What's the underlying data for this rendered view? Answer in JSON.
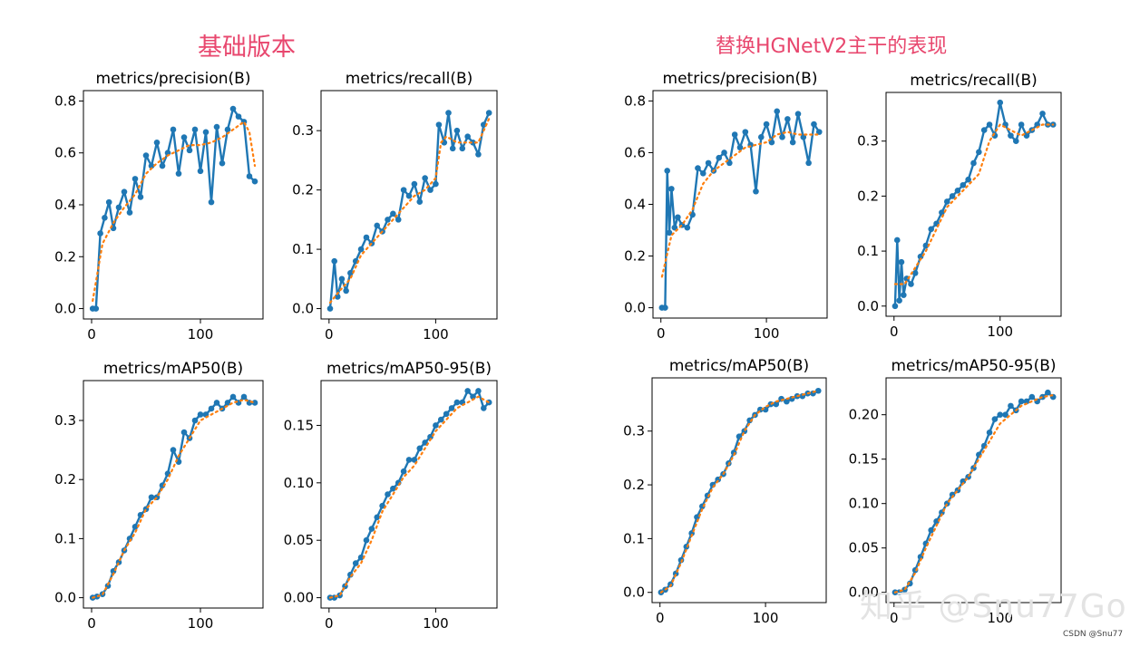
{
  "headings": {
    "left": "基础版本",
    "right": "替换HGNetV2主干的表现"
  },
  "watermark": "知乎 @Snu77Go",
  "credit": "CSDN @Snu77",
  "colors": {
    "heading": "#e8476e",
    "series_results": "#1f77b4",
    "series_smooth": "#ff7f0e"
  },
  "chart_data": [
    {
      "type": "line",
      "group": "基础版本",
      "title": "metrics/precision(B)",
      "xlim": [
        0,
        150
      ],
      "ylim": [
        0,
        0.8
      ],
      "xticks": [
        0,
        100
      ],
      "xtick_labels": [
        "0",
        "100"
      ],
      "yticks": [
        0,
        0.2,
        0.4,
        0.6,
        0.8
      ],
      "ytick_labels": [
        "0.0",
        "0.2",
        "0.4",
        "0.6",
        "0.8"
      ],
      "series": [
        {
          "style": "line-markers",
          "x": [
            1,
            4,
            8,
            12,
            16,
            20,
            25,
            30,
            35,
            40,
            45,
            50,
            55,
            60,
            65,
            70,
            75,
            80,
            85,
            90,
            95,
            100,
            105,
            110,
            115,
            120,
            125,
            130,
            135,
            140,
            145,
            150
          ],
          "y": [
            0.0,
            0.0,
            0.29,
            0.35,
            0.41,
            0.31,
            0.39,
            0.45,
            0.37,
            0.5,
            0.43,
            0.59,
            0.55,
            0.64,
            0.55,
            0.6,
            0.69,
            0.52,
            0.66,
            0.61,
            0.69,
            0.53,
            0.68,
            0.41,
            0.7,
            0.56,
            0.69,
            0.77,
            0.74,
            0.72,
            0.51,
            0.49
          ]
        },
        {
          "style": "dotted",
          "x": [
            1,
            10,
            20,
            30,
            40,
            50,
            60,
            70,
            80,
            90,
            100,
            110,
            120,
            130,
            140,
            145,
            150
          ],
          "y": [
            0.03,
            0.25,
            0.33,
            0.39,
            0.44,
            0.52,
            0.56,
            0.59,
            0.61,
            0.63,
            0.63,
            0.64,
            0.66,
            0.69,
            0.72,
            0.68,
            0.55
          ]
        }
      ]
    },
    {
      "type": "line",
      "group": "基础版本",
      "title": "metrics/recall(B)",
      "xlim": [
        0,
        150
      ],
      "ylim": [
        0,
        0.35
      ],
      "xticks": [
        0,
        100
      ],
      "xtick_labels": [
        "0",
        "100"
      ],
      "yticks": [
        0,
        0.1,
        0.2,
        0.3
      ],
      "ytick_labels": [
        "0.0",
        "0.1",
        "0.2",
        "0.3"
      ],
      "series": [
        {
          "style": "line-markers",
          "x": [
            1,
            5,
            8,
            12,
            16,
            20,
            25,
            30,
            35,
            40,
            45,
            50,
            55,
            60,
            65,
            70,
            75,
            80,
            85,
            90,
            95,
            100,
            103,
            108,
            112,
            116,
            120,
            125,
            130,
            135,
            140,
            145,
            150
          ],
          "y": [
            0.0,
            0.08,
            0.02,
            0.05,
            0.03,
            0.06,
            0.08,
            0.1,
            0.12,
            0.11,
            0.14,
            0.13,
            0.15,
            0.16,
            0.15,
            0.2,
            0.19,
            0.21,
            0.18,
            0.22,
            0.2,
            0.21,
            0.31,
            0.28,
            0.33,
            0.27,
            0.3,
            0.27,
            0.29,
            0.28,
            0.26,
            0.31,
            0.33
          ]
        },
        {
          "style": "dotted",
          "x": [
            1,
            10,
            20,
            30,
            40,
            50,
            60,
            70,
            80,
            90,
            100,
            105,
            110,
            120,
            130,
            140,
            150
          ],
          "y": [
            0.01,
            0.03,
            0.05,
            0.09,
            0.11,
            0.13,
            0.15,
            0.17,
            0.19,
            0.2,
            0.22,
            0.28,
            0.29,
            0.28,
            0.28,
            0.28,
            0.32
          ]
        }
      ]
    },
    {
      "type": "line",
      "group": "基础版本",
      "title": "metrics/mAP50(B)",
      "xlim": [
        0,
        150
      ],
      "ylim": [
        0,
        0.35
      ],
      "xticks": [
        0,
        100
      ],
      "xtick_labels": [
        "0",
        "100"
      ],
      "yticks": [
        0,
        0.1,
        0.2,
        0.3
      ],
      "ytick_labels": [
        "0.0",
        "0.1",
        "0.2",
        "0.3"
      ],
      "series": [
        {
          "style": "line-markers",
          "x": [
            1,
            5,
            10,
            15,
            20,
            25,
            30,
            35,
            40,
            45,
            50,
            55,
            60,
            65,
            70,
            75,
            80,
            85,
            90,
            95,
            100,
            105,
            110,
            115,
            120,
            125,
            130,
            135,
            140,
            145,
            150
          ],
          "y": [
            0.0,
            0.002,
            0.006,
            0.02,
            0.045,
            0.06,
            0.08,
            0.1,
            0.12,
            0.14,
            0.15,
            0.17,
            0.17,
            0.19,
            0.21,
            0.25,
            0.23,
            0.28,
            0.27,
            0.3,
            0.31,
            0.31,
            0.32,
            0.33,
            0.32,
            0.33,
            0.34,
            0.33,
            0.34,
            0.33,
            0.33
          ]
        },
        {
          "style": "dotted",
          "x": [
            1,
            10,
            20,
            30,
            40,
            50,
            60,
            70,
            80,
            90,
            100,
            110,
            120,
            130,
            140,
            150
          ],
          "y": [
            0.0,
            0.005,
            0.04,
            0.08,
            0.11,
            0.15,
            0.17,
            0.2,
            0.24,
            0.27,
            0.3,
            0.31,
            0.32,
            0.33,
            0.335,
            0.33
          ]
        }
      ]
    },
    {
      "type": "line",
      "group": "基础版本",
      "title": "metrics/mAP50-95(B)",
      "xlim": [
        0,
        150
      ],
      "ylim": [
        0,
        0.18
      ],
      "xticks": [
        0,
        100
      ],
      "xtick_labels": [
        "0",
        "100"
      ],
      "yticks": [
        0,
        0.05,
        0.1,
        0.15
      ],
      "ytick_labels": [
        "0.00",
        "0.05",
        "0.10",
        "0.15"
      ],
      "series": [
        {
          "style": "line-markers",
          "x": [
            1,
            5,
            10,
            15,
            20,
            25,
            30,
            35,
            40,
            45,
            50,
            55,
            60,
            65,
            70,
            75,
            80,
            85,
            90,
            95,
            100,
            105,
            110,
            115,
            120,
            125,
            130,
            135,
            140,
            145,
            150
          ],
          "y": [
            0.0,
            0.0,
            0.002,
            0.01,
            0.02,
            0.03,
            0.035,
            0.05,
            0.06,
            0.07,
            0.08,
            0.09,
            0.095,
            0.1,
            0.11,
            0.12,
            0.12,
            0.13,
            0.135,
            0.14,
            0.15,
            0.155,
            0.16,
            0.165,
            0.17,
            0.17,
            0.18,
            0.175,
            0.18,
            0.165,
            0.17
          ]
        },
        {
          "style": "dotted",
          "x": [
            1,
            10,
            20,
            30,
            40,
            50,
            60,
            70,
            80,
            90,
            100,
            110,
            120,
            130,
            140,
            150
          ],
          "y": [
            0.0,
            0.002,
            0.018,
            0.03,
            0.05,
            0.075,
            0.09,
            0.105,
            0.115,
            0.13,
            0.145,
            0.155,
            0.165,
            0.17,
            0.175,
            0.17
          ]
        }
      ]
    },
    {
      "type": "line",
      "group": "替换HGNetV2主干的表现",
      "title": "metrics/precision(B)",
      "xlim": [
        0,
        150
      ],
      "ylim": [
        0,
        0.8
      ],
      "xticks": [
        0,
        100
      ],
      "xtick_labels": [
        "0",
        "100"
      ],
      "yticks": [
        0,
        0.2,
        0.4,
        0.6,
        0.8
      ],
      "ytick_labels": [
        "0.0",
        "0.2",
        "0.4",
        "0.6",
        "0.8"
      ],
      "series": [
        {
          "style": "line-markers",
          "x": [
            1,
            4,
            6,
            8,
            10,
            13,
            16,
            20,
            25,
            30,
            35,
            40,
            45,
            50,
            55,
            60,
            65,
            70,
            75,
            80,
            85,
            90,
            95,
            100,
            105,
            110,
            115,
            120,
            125,
            130,
            135,
            140,
            145,
            150
          ],
          "y": [
            0.0,
            0.0,
            0.53,
            0.29,
            0.46,
            0.31,
            0.35,
            0.32,
            0.31,
            0.36,
            0.54,
            0.52,
            0.56,
            0.53,
            0.58,
            0.6,
            0.56,
            0.67,
            0.62,
            0.68,
            0.63,
            0.45,
            0.66,
            0.71,
            0.64,
            0.76,
            0.66,
            0.73,
            0.64,
            0.75,
            0.66,
            0.56,
            0.71,
            0.68
          ]
        },
        {
          "style": "dotted",
          "x": [
            1,
            10,
            20,
            30,
            40,
            50,
            60,
            70,
            80,
            90,
            100,
            110,
            120,
            130,
            140,
            150
          ],
          "y": [
            0.12,
            0.28,
            0.32,
            0.38,
            0.48,
            0.53,
            0.56,
            0.59,
            0.62,
            0.63,
            0.64,
            0.67,
            0.68,
            0.67,
            0.67,
            0.67
          ]
        }
      ]
    },
    {
      "type": "line",
      "group": "替换HGNetV2主干的表现",
      "title": "metrics/recall(B)",
      "xlim": [
        0,
        150
      ],
      "ylim": [
        0,
        0.37
      ],
      "xticks": [
        0,
        100
      ],
      "xtick_labels": [
        "0",
        "100"
      ],
      "yticks": [
        0,
        0.1,
        0.2,
        0.3
      ],
      "ytick_labels": [
        "0.0",
        "0.1",
        "0.2",
        "0.3"
      ],
      "series": [
        {
          "style": "line-markers",
          "x": [
            1,
            3,
            5,
            7,
            9,
            12,
            16,
            20,
            25,
            30,
            35,
            40,
            45,
            50,
            55,
            60,
            65,
            70,
            75,
            80,
            85,
            90,
            95,
            100,
            105,
            110,
            115,
            120,
            125,
            130,
            135,
            140,
            145,
            150
          ],
          "y": [
            0.0,
            0.12,
            0.01,
            0.08,
            0.02,
            0.05,
            0.04,
            0.06,
            0.09,
            0.11,
            0.14,
            0.15,
            0.17,
            0.19,
            0.2,
            0.21,
            0.22,
            0.23,
            0.26,
            0.28,
            0.32,
            0.33,
            0.31,
            0.37,
            0.33,
            0.31,
            0.3,
            0.33,
            0.31,
            0.32,
            0.33,
            0.35,
            0.33,
            0.33
          ]
        },
        {
          "style": "dotted",
          "x": [
            1,
            10,
            20,
            30,
            40,
            50,
            60,
            70,
            80,
            90,
            100,
            110,
            120,
            130,
            140,
            150
          ],
          "y": [
            0.04,
            0.04,
            0.07,
            0.1,
            0.14,
            0.18,
            0.2,
            0.22,
            0.24,
            0.3,
            0.33,
            0.32,
            0.31,
            0.32,
            0.33,
            0.33
          ]
        }
      ]
    },
    {
      "type": "line",
      "group": "替换HGNetV2主干的表现",
      "title": "metrics/mAP50(B)",
      "xlim": [
        0,
        150
      ],
      "ylim": [
        0,
        0.38
      ],
      "xticks": [
        0,
        100
      ],
      "xtick_labels": [
        "0",
        "100"
      ],
      "yticks": [
        0,
        0.1,
        0.2,
        0.3
      ],
      "ytick_labels": [
        "0.0",
        "0.1",
        "0.2",
        "0.3"
      ],
      "series": [
        {
          "style": "line-markers",
          "x": [
            1,
            5,
            10,
            15,
            20,
            25,
            30,
            35,
            40,
            45,
            50,
            55,
            60,
            65,
            70,
            75,
            80,
            85,
            90,
            95,
            100,
            105,
            110,
            115,
            120,
            125,
            130,
            135,
            140,
            145,
            150
          ],
          "y": [
            0.0,
            0.005,
            0.015,
            0.035,
            0.06,
            0.085,
            0.11,
            0.14,
            0.16,
            0.18,
            0.2,
            0.21,
            0.22,
            0.24,
            0.26,
            0.29,
            0.3,
            0.32,
            0.33,
            0.34,
            0.34,
            0.35,
            0.35,
            0.36,
            0.355,
            0.36,
            0.365,
            0.365,
            0.37,
            0.37,
            0.375
          ]
        },
        {
          "style": "dotted",
          "x": [
            1,
            10,
            20,
            30,
            40,
            50,
            60,
            70,
            80,
            90,
            100,
            110,
            120,
            130,
            140,
            150
          ],
          "y": [
            0.0,
            0.012,
            0.055,
            0.105,
            0.155,
            0.195,
            0.22,
            0.255,
            0.3,
            0.33,
            0.345,
            0.355,
            0.36,
            0.365,
            0.37,
            0.375
          ]
        }
      ]
    },
    {
      "type": "line",
      "group": "替换HGNetV2主干的表现",
      "title": "metrics/mAP50-95(B)",
      "xlim": [
        0,
        150
      ],
      "ylim": [
        0,
        0.23
      ],
      "xticks": [
        0,
        100
      ],
      "xtick_labels": [
        "0",
        "100"
      ],
      "yticks": [
        0,
        0.05,
        0.1,
        0.15,
        0.2
      ],
      "ytick_labels": [
        "0.00",
        "0.05",
        "0.10",
        "0.15",
        "0.20"
      ],
      "series": [
        {
          "style": "line-markers",
          "x": [
            1,
            5,
            10,
            15,
            20,
            25,
            30,
            35,
            40,
            45,
            50,
            55,
            60,
            65,
            70,
            75,
            80,
            85,
            90,
            95,
            100,
            105,
            110,
            115,
            120,
            125,
            130,
            135,
            140,
            145,
            150
          ],
          "y": [
            0.0,
            0.0,
            0.003,
            0.01,
            0.025,
            0.04,
            0.055,
            0.07,
            0.08,
            0.09,
            0.1,
            0.11,
            0.115,
            0.125,
            0.13,
            0.14,
            0.155,
            0.165,
            0.18,
            0.195,
            0.2,
            0.2,
            0.21,
            0.205,
            0.215,
            0.215,
            0.22,
            0.215,
            0.22,
            0.225,
            0.22
          ]
        },
        {
          "style": "dotted",
          "x": [
            1,
            10,
            20,
            30,
            40,
            50,
            60,
            70,
            80,
            90,
            100,
            110,
            120,
            130,
            140,
            150
          ],
          "y": [
            0.0,
            0.003,
            0.022,
            0.05,
            0.075,
            0.1,
            0.115,
            0.13,
            0.15,
            0.17,
            0.19,
            0.2,
            0.21,
            0.215,
            0.22,
            0.222
          ]
        }
      ]
    }
  ]
}
